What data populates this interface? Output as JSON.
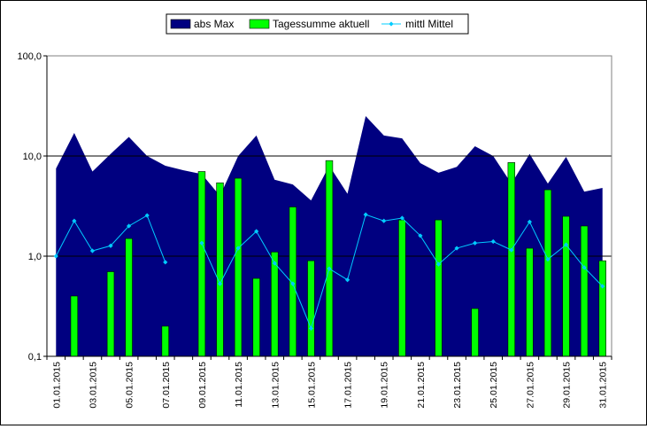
{
  "chart_data": {
    "type": "bar",
    "title": "",
    "xlabel": "",
    "ylabel": "",
    "y_scale": "log",
    "ylim": [
      0.1,
      100
    ],
    "y_ticks": [
      {
        "value": 0.1,
        "label": "0,1"
      },
      {
        "value": 1,
        "label": "1,0"
      },
      {
        "value": 10,
        "label": "10,0"
      },
      {
        "value": 100,
        "label": "100,0"
      }
    ],
    "grid": "horizontal at 10,0 and 1,0",
    "legend_position": "top",
    "x_tick_labels": [
      "01.01.2015",
      "03.01.2015",
      "05.01.2015",
      "07.01.2015",
      "09.01.2015",
      "11.01.2015",
      "13.01.2015",
      "15.01.2015",
      "17.01.2015",
      "19.01.2015",
      "21.01.2015",
      "23.01.2015",
      "25.01.2015",
      "27.01.2015",
      "29.01.2015",
      "31.01.2015"
    ],
    "days": [
      1,
      2,
      3,
      4,
      5,
      6,
      7,
      8,
      9,
      10,
      11,
      12,
      13,
      14,
      15,
      16,
      17,
      18,
      19,
      20,
      21,
      22,
      23,
      24,
      25,
      26,
      27,
      28,
      29,
      30,
      31
    ],
    "series": [
      {
        "name": "abs Max",
        "kind": "area",
        "color": "#000080",
        "values": [
          7.5,
          17,
          7,
          10.5,
          15.5,
          10,
          8,
          7.2,
          6.6,
          4,
          10,
          16,
          5.8,
          5.2,
          3.6,
          8,
          4.2,
          25,
          16,
          15,
          8.5,
          6.8,
          7.8,
          12.5,
          10,
          5.3,
          10.5,
          5.3,
          9.8,
          4.4,
          4.8
        ]
      },
      {
        "name": "Tagessumme aktuell",
        "kind": "bar",
        "color": "#00ff00",
        "values": [
          null,
          0.4,
          null,
          0.7,
          1.5,
          null,
          0.2,
          null,
          7,
          5.4,
          6,
          0.6,
          1.1,
          3.1,
          0.9,
          9,
          null,
          null,
          null,
          2.3,
          null,
          2.3,
          null,
          0.3,
          null,
          8.6,
          1.2,
          4.6,
          2.5,
          2,
          0.9
        ]
      },
      {
        "name": "mittl Mittel",
        "kind": "line",
        "color": "#00ccff",
        "values": [
          1,
          2.25,
          1.13,
          1.27,
          2,
          2.55,
          0.87,
          null,
          1.35,
          0.53,
          1.2,
          1.77,
          0.85,
          0.53,
          0.19,
          0.75,
          0.58,
          2.6,
          2.25,
          2.4,
          1.6,
          0.83,
          1.2,
          1.35,
          1.4,
          1.15,
          2.2,
          0.93,
          1.3,
          0.77,
          0.5
        ]
      }
    ]
  }
}
